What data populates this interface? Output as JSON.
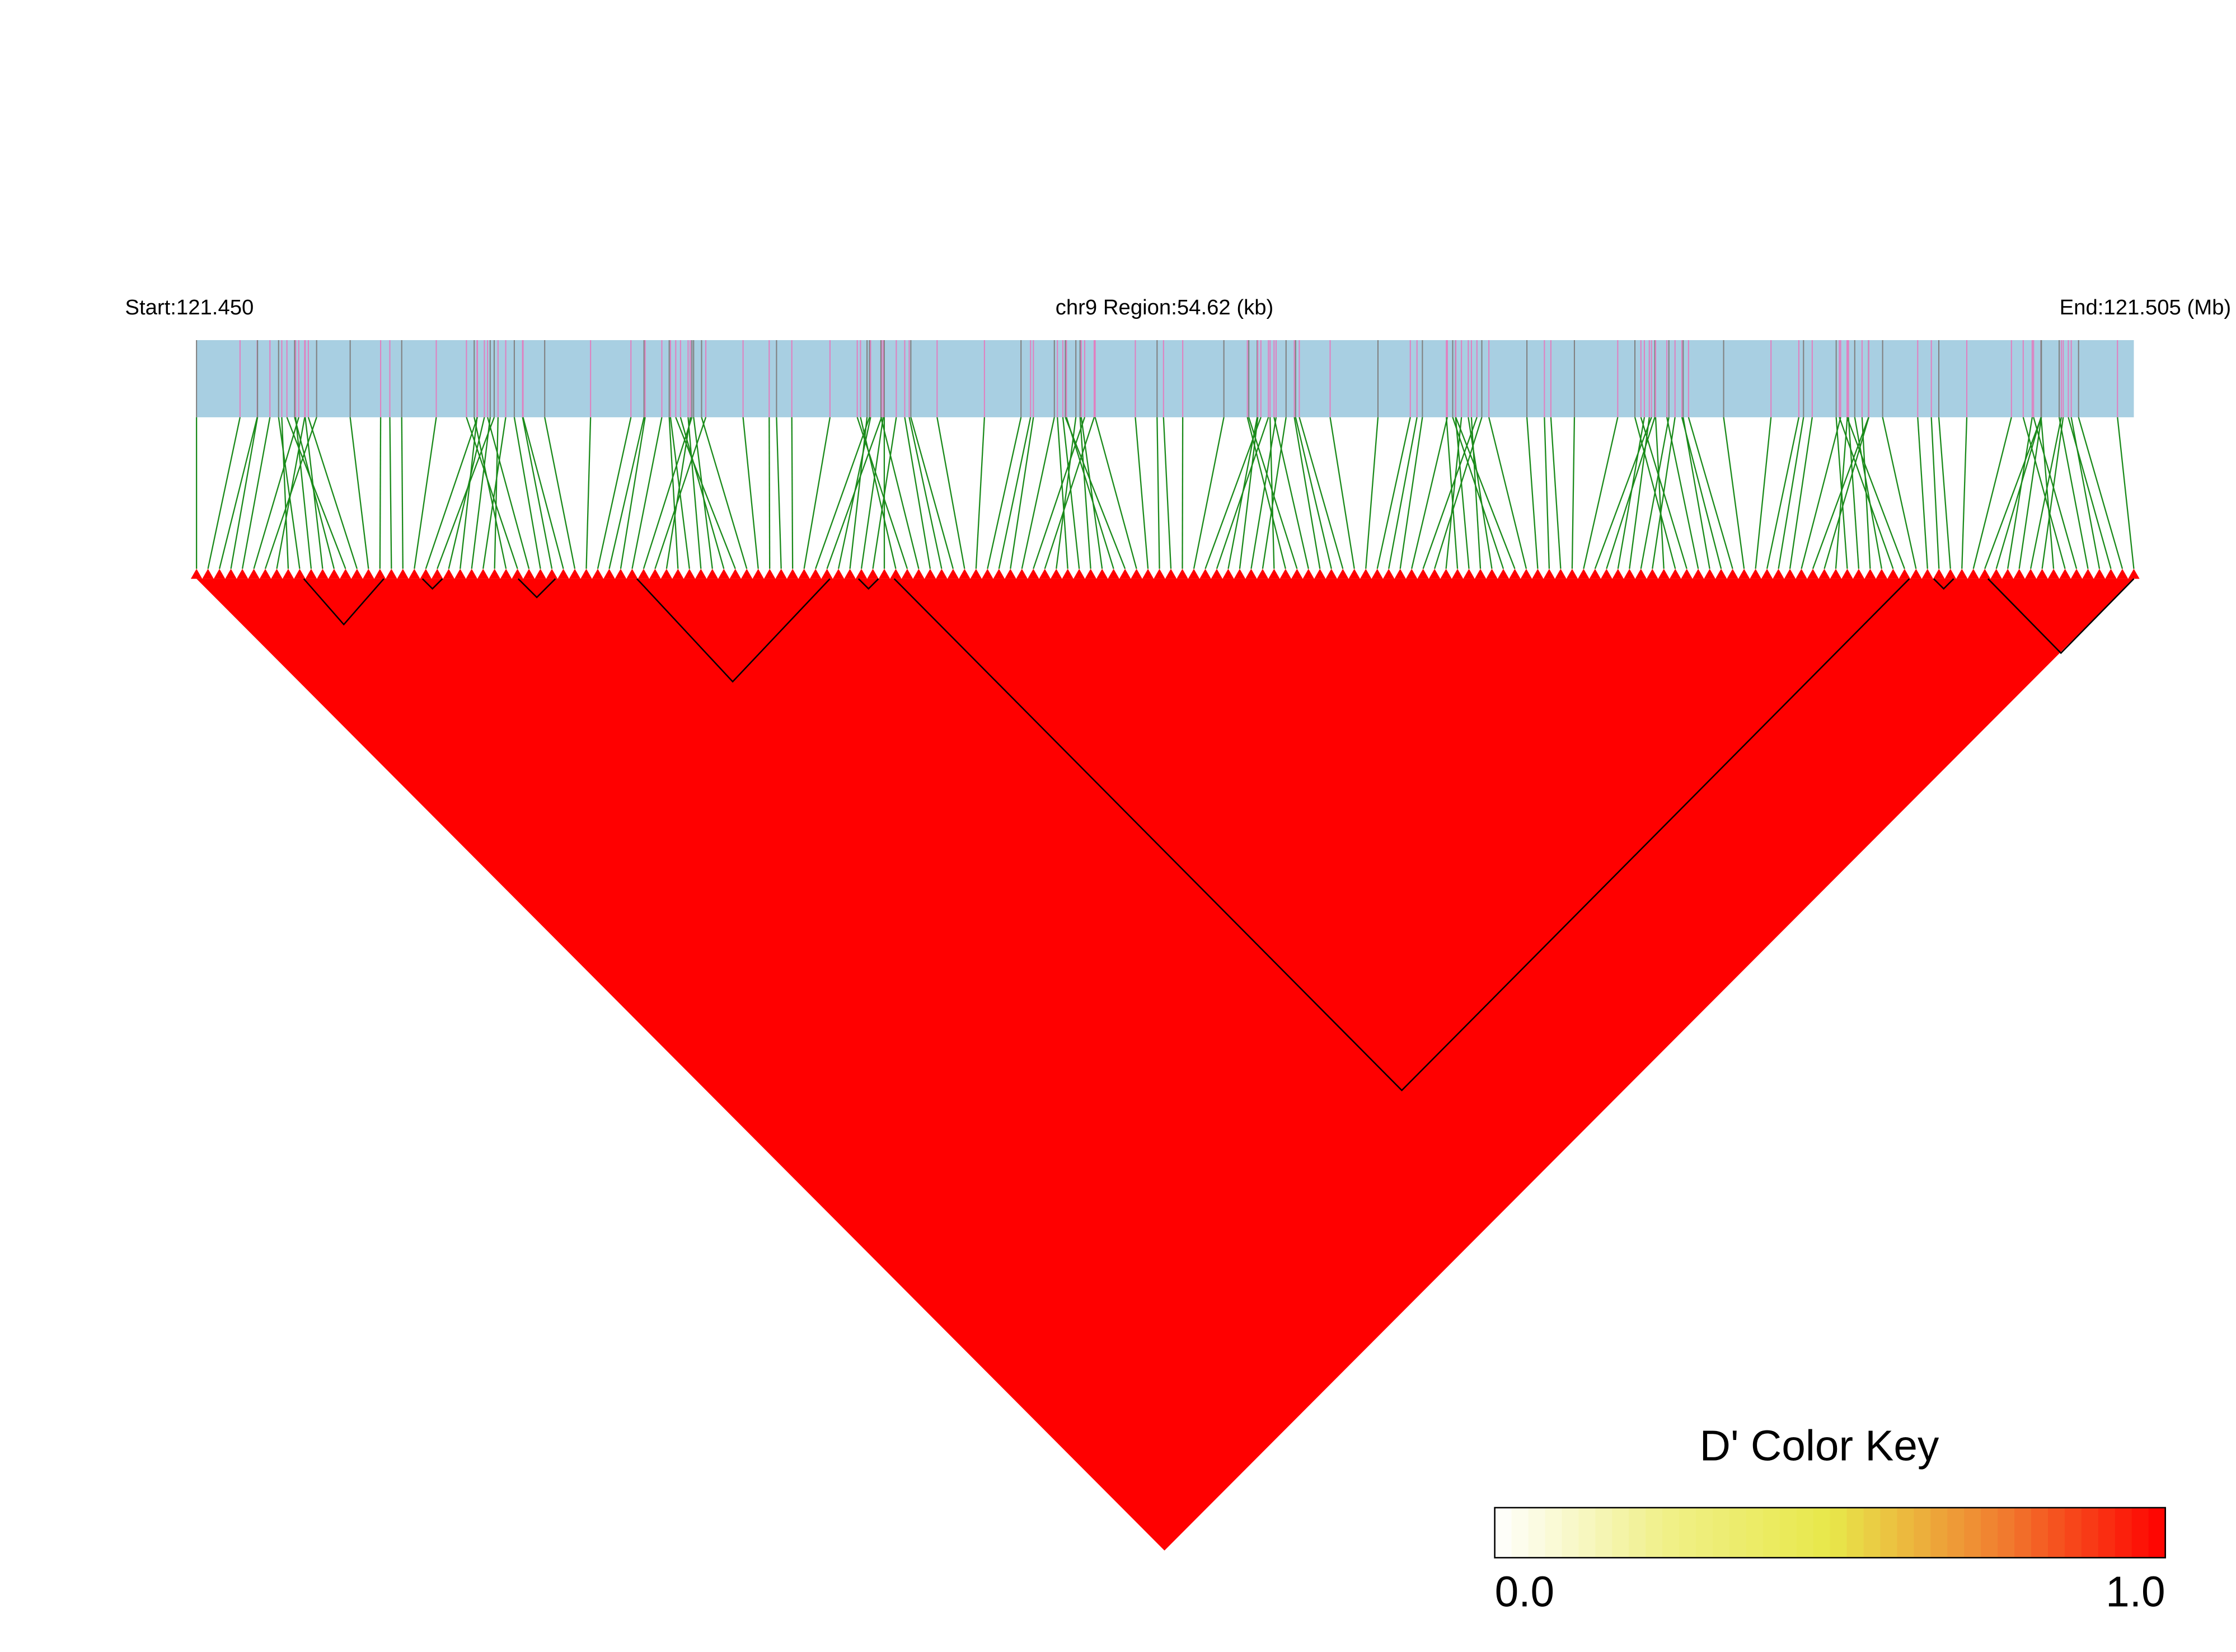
{
  "chart_data": {
    "type": "heatmap",
    "start_label": "Start:121.450",
    "region_label": "chr9 Region:54.62 (kb)",
    "end_label": "End:121.505 (Mb)",
    "color_key": {
      "title": "D' Color Key",
      "lim": [
        0,
        1
      ],
      "ticks": [
        {
          "value": 0,
          "label": "0.0"
        },
        {
          "value": 1,
          "label": "1.0"
        }
      ],
      "colors": [
        "#ffffff",
        "#f0f08a",
        "#e8e84a",
        "#f08030",
        "#ff0000"
      ]
    }
  }
}
